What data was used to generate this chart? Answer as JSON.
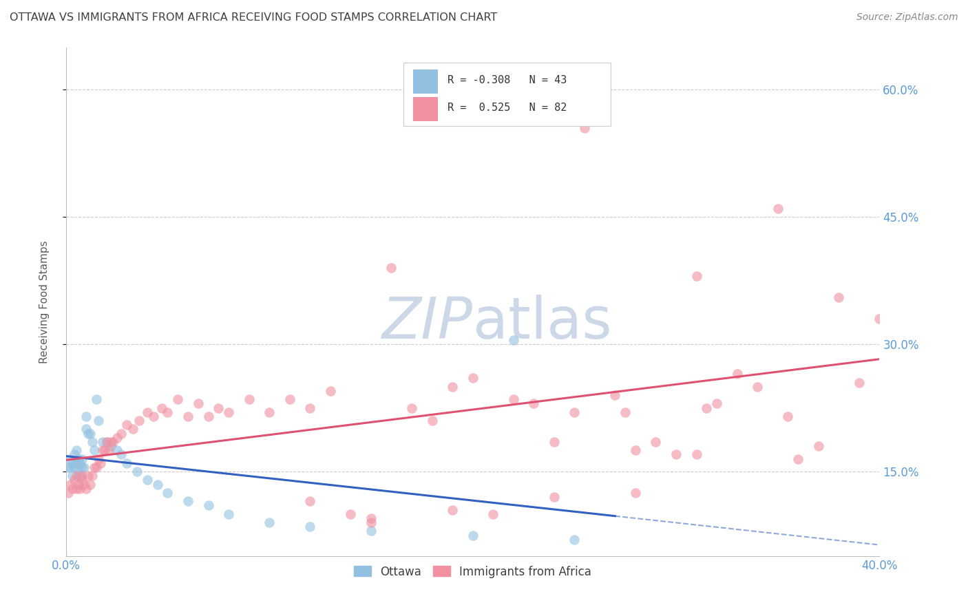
{
  "title": "OTTAWA VS IMMIGRANTS FROM AFRICA RECEIVING FOOD STAMPS CORRELATION CHART",
  "source": "Source: ZipAtlas.com",
  "ylabel": "Receiving Food Stamps",
  "ytick_labels": [
    "15.0%",
    "30.0%",
    "45.0%",
    "60.0%"
  ],
  "ytick_values": [
    0.15,
    0.3,
    0.45,
    0.6
  ],
  "xmin": 0.0,
  "xmax": 0.4,
  "ymin": 0.05,
  "ymax": 0.65,
  "ottawa_R": -0.308,
  "ottawa_N": 43,
  "africa_R": 0.525,
  "africa_N": 82,
  "blue_color": "#92c0e0",
  "pink_color": "#f090a0",
  "blue_line_color": "#3060c0",
  "pink_line_color": "#e05070",
  "watermark_color": "#ccd8e8",
  "title_color": "#404040",
  "axis_label_color": "#5b5b5b",
  "right_tick_color": "#5b9bd5",
  "grid_color": "#cccccc",
  "background_color": "#ffffff",
  "ottawa_x": [
    0.001,
    0.002,
    0.002,
    0.003,
    0.003,
    0.004,
    0.004,
    0.005,
    0.005,
    0.006,
    0.006,
    0.007,
    0.007,
    0.008,
    0.008,
    0.009,
    0.01,
    0.01,
    0.011,
    0.012,
    0.013,
    0.014,
    0.015,
    0.016,
    0.018,
    0.02,
    0.022,
    0.025,
    0.027,
    0.03,
    0.035,
    0.04,
    0.045,
    0.05,
    0.06,
    0.07,
    0.08,
    0.1,
    0.12,
    0.15,
    0.2,
    0.22,
    0.25
  ],
  "ottawa_y": [
    0.155,
    0.165,
    0.155,
    0.16,
    0.145,
    0.17,
    0.155,
    0.175,
    0.16,
    0.15,
    0.165,
    0.145,
    0.16,
    0.155,
    0.165,
    0.155,
    0.2,
    0.215,
    0.195,
    0.195,
    0.185,
    0.175,
    0.235,
    0.21,
    0.185,
    0.185,
    0.18,
    0.175,
    0.17,
    0.16,
    0.15,
    0.14,
    0.135,
    0.125,
    0.115,
    0.11,
    0.1,
    0.09,
    0.085,
    0.08,
    0.075,
    0.305,
    0.07
  ],
  "africa_x": [
    0.001,
    0.002,
    0.003,
    0.004,
    0.005,
    0.005,
    0.006,
    0.007,
    0.008,
    0.008,
    0.009,
    0.01,
    0.011,
    0.012,
    0.013,
    0.014,
    0.015,
    0.016,
    0.017,
    0.018,
    0.019,
    0.02,
    0.021,
    0.022,
    0.023,
    0.025,
    0.027,
    0.03,
    0.033,
    0.036,
    0.04,
    0.043,
    0.047,
    0.05,
    0.055,
    0.06,
    0.065,
    0.07,
    0.075,
    0.08,
    0.09,
    0.1,
    0.11,
    0.12,
    0.13,
    0.14,
    0.15,
    0.16,
    0.17,
    0.18,
    0.19,
    0.2,
    0.21,
    0.22,
    0.23,
    0.24,
    0.25,
    0.255,
    0.26,
    0.27,
    0.275,
    0.28,
    0.29,
    0.3,
    0.31,
    0.315,
    0.32,
    0.33,
    0.34,
    0.35,
    0.355,
    0.36,
    0.37,
    0.38,
    0.39,
    0.4,
    0.31,
    0.28,
    0.24,
    0.19,
    0.15,
    0.12
  ],
  "africa_y": [
    0.125,
    0.135,
    0.13,
    0.14,
    0.13,
    0.145,
    0.135,
    0.13,
    0.14,
    0.145,
    0.135,
    0.13,
    0.145,
    0.135,
    0.145,
    0.155,
    0.155,
    0.165,
    0.16,
    0.175,
    0.175,
    0.185,
    0.175,
    0.185,
    0.185,
    0.19,
    0.195,
    0.205,
    0.2,
    0.21,
    0.22,
    0.215,
    0.225,
    0.22,
    0.235,
    0.215,
    0.23,
    0.215,
    0.225,
    0.22,
    0.235,
    0.22,
    0.235,
    0.225,
    0.245,
    0.1,
    0.09,
    0.39,
    0.225,
    0.21,
    0.25,
    0.26,
    0.1,
    0.235,
    0.23,
    0.185,
    0.22,
    0.555,
    0.57,
    0.24,
    0.22,
    0.175,
    0.185,
    0.17,
    0.38,
    0.225,
    0.23,
    0.265,
    0.25,
    0.46,
    0.215,
    0.165,
    0.18,
    0.355,
    0.255,
    0.33,
    0.17,
    0.125,
    0.12,
    0.105,
    0.095,
    0.115
  ]
}
